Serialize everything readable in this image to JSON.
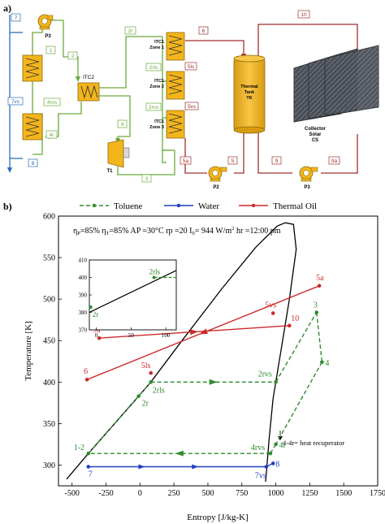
{
  "panel_a": {
    "label": "a)",
    "components": {
      "p3_top": "P3",
      "itc2": "ITC2",
      "itc1_zone1": [
        "ITC1",
        "Zone 1"
      ],
      "itc1_zone2": [
        "ITC1",
        "Zone 2"
      ],
      "itc1_zone3": [
        "ITC1",
        "Zone 3"
      ],
      "t1": "T1",
      "p2": "P2",
      "p3_bottom": "P3",
      "tank": [
        "Thermal",
        "Tank",
        "TK"
      ],
      "collector": [
        "Collector",
        "Solar",
        "CS"
      ]
    },
    "streams": {
      "s7": "7",
      "s7vs": "7vs",
      "s8": "8",
      "s1": "1",
      "s2": "2",
      "s4rvs": "4rvs",
      "s4r": "4r",
      "s2r": "2r",
      "s2rls": "2rls",
      "s2rvs": "2rvs",
      "s4": "4",
      "s3": "3",
      "s6": "6",
      "s5ls": "5ls",
      "s5vs": "5vs",
      "s5a": "5a",
      "s5": "5",
      "s10": "10",
      "s9": "9",
      "s9a": "9a"
    },
    "colors": {
      "toluene": "#6aaa3a",
      "oil": "#a0302e",
      "water": "#2c6db5",
      "equipment": "#f3b51b"
    }
  },
  "panel_b": {
    "label": "b)",
    "legend": [
      "Toluene",
      "Water",
      "Thermal Oil"
    ],
    "params": {
      "eta_p": "η",
      "eta_p_sub": "P",
      "eta_p_val": "=85% ",
      "eta_t": "η",
      "eta_t_sub": "T",
      "eta_t_val": "=85% AP =30°C   rp =20   I",
      "i0_sub": "0",
      "i0_val": "= 944 W/m",
      "i0_sup": "2",
      "i0_tail": " hr =12:00 pm"
    },
    "annotation": "4-4r= heat recuperator",
    "inset_labels": {
      "p2r": "2r",
      "p2rls": "2rls"
    }
  },
  "chart_data": {
    "type": "scatter",
    "xlabel": "Entropy [J/kg-K]",
    "ylabel": "Temperature [K]",
    "xlim": [
      -600,
      1750
    ],
    "ylim": [
      275,
      600
    ],
    "xticks": [
      -500,
      -250,
      0,
      250,
      500,
      750,
      1000,
      1250,
      1500,
      1750
    ],
    "yticks": [
      300,
      350,
      400,
      450,
      500,
      550,
      600
    ],
    "grid": false,
    "legend_position": "top",
    "series": [
      {
        "name": "Toluene",
        "color": "#2e8b2e",
        "style": "dashed",
        "points": [
          {
            "label": "1-2",
            "x": -380,
            "y": 314
          },
          {
            "label": "2r",
            "x": -10,
            "y": 383
          },
          {
            "label": "2rls",
            "x": 80,
            "y": 400
          },
          {
            "label": "2rvs",
            "x": 1000,
            "y": 400
          },
          {
            "label": "3",
            "x": 1300,
            "y": 484
          },
          {
            "label": "4",
            "x": 1340,
            "y": 424
          },
          {
            "label": "4rvs",
            "x": 960,
            "y": 314
          },
          {
            "label": "4r",
            "x": 1000,
            "y": 325
          }
        ]
      },
      {
        "name": "Water",
        "color": "#1f3fbf",
        "style": "solid",
        "points": [
          {
            "label": "7",
            "x": -380,
            "y": 298
          },
          {
            "label": "7vs",
            "x": 930,
            "y": 298
          },
          {
            "label": "8",
            "x": 980,
            "y": 302
          }
        ]
      },
      {
        "name": "Thermal Oil",
        "color": "#cc2a2a",
        "style": "solid",
        "points": [
          {
            "label": "5a",
            "x": 1320,
            "y": 516
          },
          {
            "label": "5vs",
            "x": 980,
            "y": 483
          },
          {
            "label": "5ls",
            "x": 80,
            "y": 411
          },
          {
            "label": "6",
            "x": -390,
            "y": 403
          },
          {
            "label": "9a",
            "x": -300,
            "y": 453
          },
          {
            "label": "10",
            "x": 1100,
            "y": 468
          }
        ]
      }
    ],
    "saturation_dome": {
      "left": [
        [
          -540,
          283
        ],
        [
          -380,
          314
        ],
        [
          -10,
          383
        ],
        [
          80,
          400
        ],
        [
          300,
          448
        ],
        [
          600,
          512
        ],
        [
          850,
          562
        ],
        [
          1010,
          588
        ],
        [
          1070,
          592
        ]
      ],
      "right": [
        [
          1070,
          592
        ],
        [
          1130,
          590
        ],
        [
          1150,
          560
        ],
        [
          1100,
          500
        ],
        [
          1030,
          430
        ],
        [
          980,
          380
        ],
        [
          950,
          330
        ],
        [
          930,
          290
        ],
        [
          925,
          280
        ]
      ]
    },
    "inset": {
      "xlim": [
        -10,
        115
      ],
      "ylim": [
        370,
        410
      ],
      "xticks": [
        0,
        50,
        100
      ],
      "yticks": [
        370,
        380,
        390,
        400,
        410
      ],
      "line": [
        [
          -10,
          380
        ],
        [
          115,
          404
        ]
      ],
      "points": [
        {
          "label": "2r",
          "x": -8,
          "y": 383
        },
        {
          "label": "2rls",
          "x": 83,
          "y": 400
        }
      ],
      "dash_to_x": 115
    }
  }
}
